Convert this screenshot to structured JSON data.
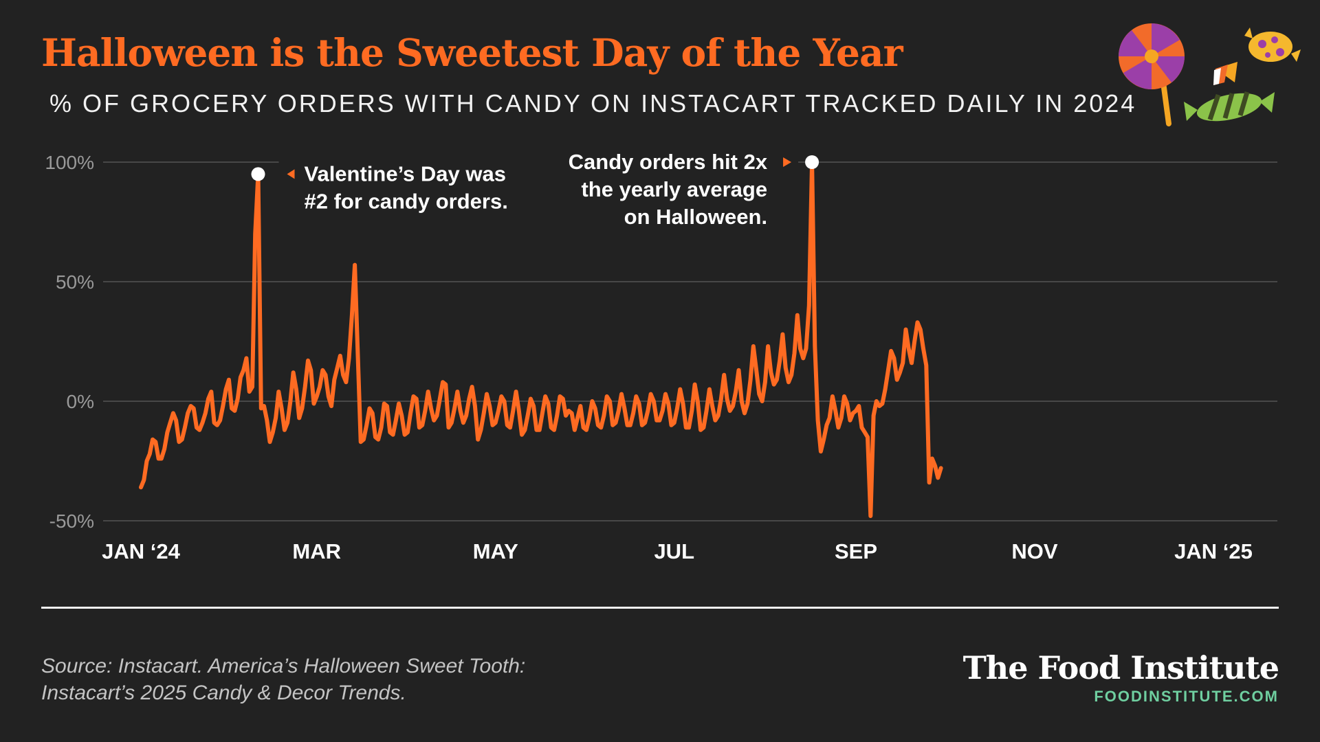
{
  "header": {
    "title": "Halloween is the Sweetest Day of the Year",
    "subtitle": "% OF GROCERY ORDERS WITH CANDY ON INSTACART TRACKED DAILY IN 2024"
  },
  "chart_data": {
    "type": "line",
    "ylim": [
      -50,
      100
    ],
    "yticks": [
      100,
      50,
      0,
      -50
    ],
    "ytick_labels": [
      "100%",
      "50%",
      "0%",
      "-50%"
    ],
    "xtick_labels": [
      "JAN ‘24",
      "MAR",
      "MAY",
      "JUL",
      "SEP",
      "NOV",
      "JAN ‘25"
    ],
    "xtick_days": [
      0,
      60,
      121,
      182,
      244,
      305,
      366
    ],
    "grid": true,
    "line_color": "#FF6B22",
    "series": [
      {
        "points": [
          [
            0,
            -36
          ],
          [
            1,
            -33
          ],
          [
            2,
            -25
          ],
          [
            3,
            -22
          ],
          [
            4,
            -16
          ],
          [
            5,
            -17
          ],
          [
            6,
            -24
          ],
          [
            7,
            -24
          ],
          [
            8,
            -20
          ],
          [
            9,
            -13
          ],
          [
            10,
            -9
          ],
          [
            11,
            -5
          ],
          [
            12,
            -8
          ],
          [
            13,
            -17
          ],
          [
            14,
            -16
          ],
          [
            15,
            -11
          ],
          [
            16,
            -5
          ],
          [
            17,
            -2
          ],
          [
            18,
            -3
          ],
          [
            19,
            -11
          ],
          [
            20,
            -12
          ],
          [
            21,
            -9
          ],
          [
            22,
            -5
          ],
          [
            23,
            1
          ],
          [
            24,
            4
          ],
          [
            25,
            -9
          ],
          [
            26,
            -10
          ],
          [
            27,
            -8
          ],
          [
            28,
            -2
          ],
          [
            29,
            5
          ],
          [
            30,
            9
          ],
          [
            31,
            -3
          ],
          [
            32,
            -4
          ],
          [
            33,
            1
          ],
          [
            34,
            10
          ],
          [
            35,
            13
          ],
          [
            36,
            18
          ],
          [
            37,
            4
          ],
          [
            38,
            6
          ],
          [
            39,
            70
          ],
          [
            40,
            95
          ],
          [
            41,
            -3
          ],
          [
            42,
            -2
          ],
          [
            43,
            -8
          ],
          [
            44,
            -17
          ],
          [
            45,
            -13
          ],
          [
            46,
            -7
          ],
          [
            47,
            4
          ],
          [
            48,
            -3
          ],
          [
            49,
            -12
          ],
          [
            50,
            -9
          ],
          [
            51,
            0
          ],
          [
            52,
            12
          ],
          [
            53,
            5
          ],
          [
            54,
            -7
          ],
          [
            55,
            -3
          ],
          [
            56,
            6
          ],
          [
            57,
            17
          ],
          [
            58,
            13
          ],
          [
            59,
            -1
          ],
          [
            60,
            2
          ],
          [
            61,
            6
          ],
          [
            62,
            13
          ],
          [
            63,
            11
          ],
          [
            64,
            2
          ],
          [
            65,
            -2
          ],
          [
            66,
            9
          ],
          [
            67,
            14
          ],
          [
            68,
            19
          ],
          [
            69,
            11
          ],
          [
            70,
            8
          ],
          [
            71,
            18
          ],
          [
            72,
            36
          ],
          [
            73,
            57
          ],
          [
            74,
            20
          ],
          [
            75,
            -17
          ],
          [
            76,
            -16
          ],
          [
            77,
            -10
          ],
          [
            78,
            -3
          ],
          [
            79,
            -5
          ],
          [
            80,
            -15
          ],
          [
            81,
            -16
          ],
          [
            82,
            -11
          ],
          [
            83,
            -1
          ],
          [
            84,
            -2
          ],
          [
            85,
            -13
          ],
          [
            86,
            -14
          ],
          [
            87,
            -8
          ],
          [
            88,
            -1
          ],
          [
            89,
            -6
          ],
          [
            90,
            -14
          ],
          [
            91,
            -13
          ],
          [
            92,
            -5
          ],
          [
            93,
            2
          ],
          [
            94,
            1
          ],
          [
            95,
            -11
          ],
          [
            96,
            -10
          ],
          [
            97,
            -4
          ],
          [
            98,
            4
          ],
          [
            99,
            -3
          ],
          [
            100,
            -8
          ],
          [
            101,
            -6
          ],
          [
            102,
            1
          ],
          [
            103,
            8
          ],
          [
            104,
            7
          ],
          [
            105,
            -11
          ],
          [
            106,
            -9
          ],
          [
            107,
            -3
          ],
          [
            108,
            4
          ],
          [
            109,
            -4
          ],
          [
            110,
            -9
          ],
          [
            111,
            -6
          ],
          [
            112,
            1
          ],
          [
            113,
            6
          ],
          [
            114,
            -2
          ],
          [
            115,
            -16
          ],
          [
            116,
            -12
          ],
          [
            117,
            -5
          ],
          [
            118,
            3
          ],
          [
            119,
            -2
          ],
          [
            120,
            -10
          ],
          [
            121,
            -9
          ],
          [
            122,
            -4
          ],
          [
            123,
            2
          ],
          [
            124,
            0
          ],
          [
            125,
            -10
          ],
          [
            126,
            -11
          ],
          [
            127,
            -4
          ],
          [
            128,
            4
          ],
          [
            129,
            -4
          ],
          [
            130,
            -14
          ],
          [
            131,
            -12
          ],
          [
            132,
            -6
          ],
          [
            133,
            1
          ],
          [
            134,
            -2
          ],
          [
            135,
            -12
          ],
          [
            136,
            -12
          ],
          [
            137,
            -5
          ],
          [
            138,
            2
          ],
          [
            139,
            -1
          ],
          [
            140,
            -11
          ],
          [
            141,
            -12
          ],
          [
            142,
            -6
          ],
          [
            143,
            2
          ],
          [
            144,
            1
          ],
          [
            145,
            -6
          ],
          [
            146,
            -4
          ],
          [
            147,
            -5
          ],
          [
            148,
            -12
          ],
          [
            149,
            -7
          ],
          [
            150,
            -2
          ],
          [
            151,
            -11
          ],
          [
            152,
            -12
          ],
          [
            153,
            -7
          ],
          [
            154,
            0
          ],
          [
            155,
            -3
          ],
          [
            156,
            -10
          ],
          [
            157,
            -11
          ],
          [
            158,
            -6
          ],
          [
            159,
            2
          ],
          [
            160,
            0
          ],
          [
            161,
            -10
          ],
          [
            162,
            -9
          ],
          [
            163,
            -4
          ],
          [
            164,
            3
          ],
          [
            165,
            -3
          ],
          [
            166,
            -10
          ],
          [
            167,
            -10
          ],
          [
            168,
            -5
          ],
          [
            169,
            2
          ],
          [
            170,
            -1
          ],
          [
            171,
            -10
          ],
          [
            172,
            -9
          ],
          [
            173,
            -4
          ],
          [
            174,
            3
          ],
          [
            175,
            0
          ],
          [
            176,
            -8
          ],
          [
            177,
            -8
          ],
          [
            178,
            -4
          ],
          [
            179,
            3
          ],
          [
            180,
            -1
          ],
          [
            181,
            -10
          ],
          [
            182,
            -9
          ],
          [
            183,
            -3
          ],
          [
            184,
            5
          ],
          [
            185,
            -1
          ],
          [
            186,
            -11
          ],
          [
            187,
            -11
          ],
          [
            188,
            -4
          ],
          [
            189,
            7
          ],
          [
            190,
            0
          ],
          [
            191,
            -12
          ],
          [
            192,
            -11
          ],
          [
            193,
            -4
          ],
          [
            194,
            5
          ],
          [
            195,
            -2
          ],
          [
            196,
            -8
          ],
          [
            197,
            -6
          ],
          [
            198,
            1
          ],
          [
            199,
            11
          ],
          [
            200,
            1
          ],
          [
            201,
            -4
          ],
          [
            202,
            -2
          ],
          [
            203,
            4
          ],
          [
            204,
            13
          ],
          [
            205,
            0
          ],
          [
            206,
            -5
          ],
          [
            207,
            -1
          ],
          [
            208,
            9
          ],
          [
            209,
            23
          ],
          [
            210,
            13
          ],
          [
            211,
            3
          ],
          [
            212,
            0
          ],
          [
            213,
            8
          ],
          [
            214,
            23
          ],
          [
            215,
            12
          ],
          [
            216,
            7
          ],
          [
            217,
            9
          ],
          [
            218,
            17
          ],
          [
            219,
            28
          ],
          [
            220,
            14
          ],
          [
            221,
            8
          ],
          [
            222,
            11
          ],
          [
            223,
            20
          ],
          [
            224,
            36
          ],
          [
            225,
            22
          ],
          [
            226,
            18
          ],
          [
            227,
            22
          ],
          [
            228,
            40
          ],
          [
            229,
            100
          ],
          [
            230,
            23
          ],
          [
            231,
            -8
          ],
          [
            232,
            -21
          ],
          [
            233,
            -16
          ],
          [
            234,
            -10
          ],
          [
            235,
            -7
          ],
          [
            236,
            2
          ],
          [
            237,
            -4
          ],
          [
            238,
            -11
          ],
          [
            239,
            -7
          ],
          [
            240,
            2
          ],
          [
            241,
            -1
          ],
          [
            242,
            -8
          ],
          [
            243,
            -5
          ],
          [
            244,
            -4
          ],
          [
            245,
            -2
          ],
          [
            246,
            -11
          ],
          [
            247,
            -13
          ],
          [
            248,
            -15
          ],
          [
            249,
            -48
          ],
          [
            250,
            -6
          ],
          [
            251,
            0
          ],
          [
            252,
            -2
          ],
          [
            253,
            -1
          ],
          [
            254,
            5
          ],
          [
            255,
            13
          ],
          [
            256,
            21
          ],
          [
            257,
            18
          ],
          [
            258,
            9
          ],
          [
            259,
            12
          ],
          [
            260,
            16
          ],
          [
            261,
            30
          ],
          [
            262,
            22
          ],
          [
            263,
            16
          ],
          [
            264,
            25
          ],
          [
            265,
            33
          ],
          [
            266,
            30
          ],
          [
            267,
            22
          ],
          [
            268,
            15
          ],
          [
            269,
            -34
          ],
          [
            270,
            -24
          ],
          [
            271,
            -27
          ],
          [
            272,
            -32
          ],
          [
            273,
            -28
          ]
        ]
      }
    ],
    "annotations": [
      {
        "lines": [
          "Valentine’s Day was",
          "#2 for candy orders."
        ],
        "day": 40,
        "value": 95,
        "side": "right"
      },
      {
        "lines": [
          "Candy orders hit 2x",
          "the yearly average",
          "on Halloween."
        ],
        "day": 229,
        "value": 100,
        "side": "left"
      }
    ]
  },
  "footer": {
    "source_line1": "Source: Instacart. America’s Halloween Sweet Tooth:",
    "source_line2": "Instacart’s 2025 Candy & Decor Trends.",
    "brand_name": "The Food Institute",
    "brand_url": "FOODINSTITUTE.COM"
  },
  "decorations": {
    "icons": [
      "lollipop-icon",
      "candy-corn-icon",
      "wrapped-candy-icon",
      "polka-dot-candy-icon"
    ]
  }
}
